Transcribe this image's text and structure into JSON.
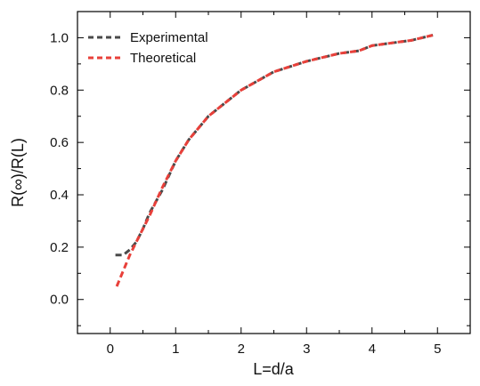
{
  "chart_data": {
    "type": "line",
    "xlabel": "L=d/a",
    "ylabel": "R(∞)/R(L)",
    "xlim": [
      -0.5,
      5.5
    ],
    "ylim": [
      -0.13,
      1.1
    ],
    "xticks": [
      0,
      1,
      2,
      3,
      4,
      5
    ],
    "xtick_labels": [
      "0",
      "1",
      "2",
      "3",
      "4",
      "5"
    ],
    "yticks": [
      0.0,
      0.2,
      0.4,
      0.6,
      0.8,
      1.0
    ],
    "ytick_labels": [
      "0.0",
      "0.2",
      "0.4",
      "0.6",
      "0.8",
      "1.0"
    ],
    "grid": false,
    "legend_position": "top-left",
    "series": [
      {
        "name": "Experimental",
        "color": "#4a4a4a",
        "style": "dashed",
        "x": [
          0.08,
          0.2,
          0.3,
          0.4,
          0.5,
          0.6,
          0.8,
          1.0,
          1.2,
          1.5,
          2.0,
          2.5,
          3.0,
          3.5,
          3.8,
          4.0,
          4.3,
          4.6,
          4.93
        ],
        "y": [
          0.17,
          0.17,
          0.19,
          0.22,
          0.27,
          0.33,
          0.42,
          0.53,
          0.61,
          0.7,
          0.8,
          0.87,
          0.91,
          0.94,
          0.95,
          0.97,
          0.98,
          0.99,
          1.01
        ]
      },
      {
        "name": "Theoretical",
        "color": "#e8403a",
        "style": "dashed",
        "x": [
          0.1,
          0.2,
          0.3,
          0.4,
          0.5,
          0.6,
          0.8,
          1.0,
          1.2,
          1.5,
          2.0,
          2.5,
          3.0,
          3.5,
          3.8,
          4.0,
          4.3,
          4.6,
          4.93
        ],
        "y": [
          0.05,
          0.11,
          0.17,
          0.22,
          0.27,
          0.32,
          0.43,
          0.53,
          0.61,
          0.7,
          0.8,
          0.87,
          0.91,
          0.94,
          0.95,
          0.97,
          0.98,
          0.99,
          1.01
        ]
      }
    ]
  }
}
